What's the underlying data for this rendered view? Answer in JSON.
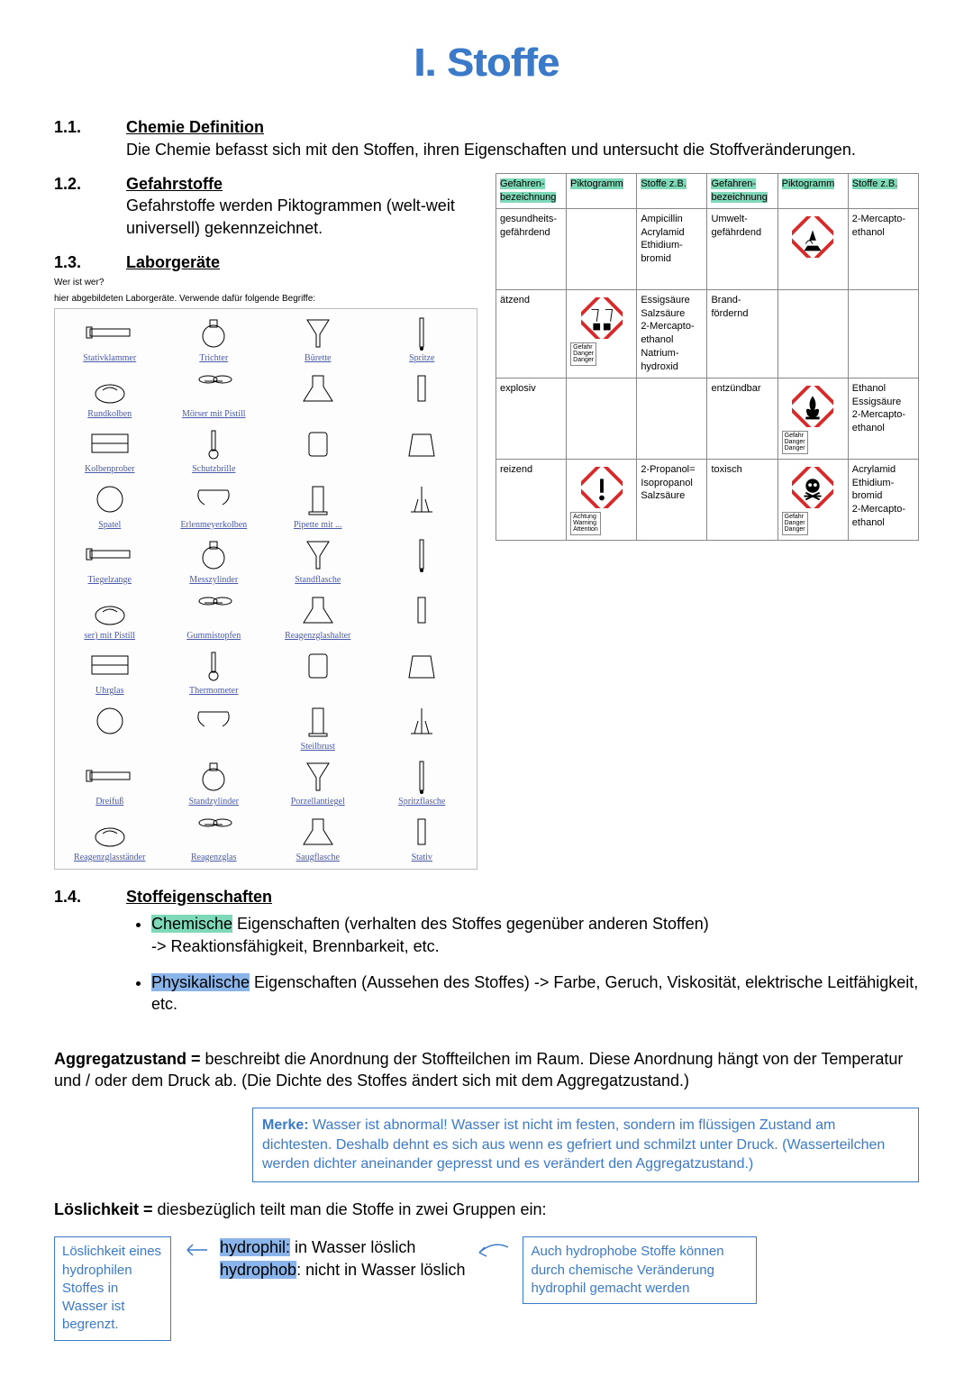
{
  "title": "I. Stoffe",
  "colors": {
    "title_color": "#3b7ac9",
    "highlight_green": "#7dd9b8",
    "highlight_blue": "#8bb5ea",
    "note_border": "#3b7ac9",
    "note_text": "#3b7ac9",
    "picto_red": "#d82a2a",
    "picto_white": "#ffffff"
  },
  "sections": {
    "s11": {
      "num": "1.1.",
      "title": "Chemie Definition",
      "body": "Die Chemie befasst sich mit den Stoffen, ihren Eigenschaften und untersucht die Stoffveränderungen."
    },
    "s12": {
      "num": "1.2.",
      "title": "Gefahrstoffe",
      "body": "Gefahrstoffe werden Piktogrammen (welt-weit universell) gekennzeichnet."
    },
    "s13": {
      "num": "1.3.",
      "title": "Laborgeräte",
      "caption1": "Wer ist wer?",
      "caption2": "hier abgebildeten Laborgeräte. Verwende dafür folgende Begriffe:"
    },
    "s14": {
      "num": "1.4.",
      "title": "Stoffeigenschaften"
    }
  },
  "hazard_table": {
    "headers": [
      "Gefahren-bezeichnung",
      "Piktogramm",
      "Stoffe z.B.",
      "Gefahren-bezeichnung",
      "Piktogramm",
      "Stoffe z.B."
    ],
    "rows": [
      {
        "left_name": "gesundheits-gefährdend",
        "left_picto": "",
        "left_stoffe": "Ampicillin\nAcrylamid\nEthidium-bromid",
        "right_name": "Umwelt-gefährdend",
        "right_picto": "environment",
        "right_picto_label": "",
        "right_stoffe": "2-Mercapto-ethanol"
      },
      {
        "left_name": "ätzend",
        "left_picto": "corrosive",
        "left_picto_label": "Gefahr\nDanger\nDanger",
        "left_stoffe": "Essigsäure\nSalzsäure\n2-Mercapto-ethanol\nNatrium-hydroxid",
        "right_name": "Brand-fördernd",
        "right_picto": "",
        "right_stoffe": ""
      },
      {
        "left_name": "explosiv",
        "left_picto": "",
        "left_stoffe": "",
        "right_name": "entzündbar",
        "right_picto": "flame",
        "right_picto_label": "Gefahr\nDanger\nDanger",
        "right_stoffe": "Ethanol\nEssigsäure\n2-Mercapto-ethanol"
      },
      {
        "left_name": "reizend",
        "left_picto": "exclaim",
        "left_picto_label": "Achtung\nWarning\nAttention",
        "left_stoffe": "2-Propanol= Isopropanol\nSalzsäure",
        "right_name": "toxisch",
        "right_picto": "skull",
        "right_picto_label": "Gefahr\nDanger\nDanger",
        "right_stoffe": "Acrylamid\nEthidium-bromid\n2-Mercapto-ethanol"
      }
    ]
  },
  "labgear": [
    "Stativklammer",
    "Trichter",
    "Bürette",
    "Spritze",
    "Rundkolben",
    "Mörser mit Pistill",
    "",
    "",
    "Kolbenprober",
    "Schutzbrille",
    "",
    "",
    "Spatel",
    "Erlenmeyerkolben",
    "Pipette mit ...",
    "",
    "Tiegelzange",
    "Messzylinder",
    "Standflasche",
    "",
    "ser) mit Pistill",
    "Gummistopfen",
    "Reagenzglashalter",
    "",
    "Uhrglas",
    "Thermometer",
    "",
    "",
    "",
    "",
    "Steilbrust",
    "",
    "Dreifuß",
    "Standzylinder",
    "Porzellantiegel",
    "Spritzflasche",
    "Reagenzglasständer",
    "Reagenzglas",
    "Saugflasche",
    "Stativ"
  ],
  "properties": {
    "bullet1_hl": "Chemische",
    "bullet1_rest": " Eigenschaften (verhalten des Stoffes gegenüber anderen Stoffen)",
    "bullet1_line2": "-> Reaktionsfähigkeit, Brennbarkeit, etc.",
    "bullet2_hl": "Physikalische",
    "bullet2_rest": " Eigenschaften (Aussehen des Stoffes) -> Farbe, Geruch, Viskosität, elektrische Leitfähigkeit, etc."
  },
  "aggregat": {
    "label": "Aggregatzustand =",
    "text": " beschreibt die Anordnung der Stoffteilchen im Raum. Diese Anordnung hängt von der Temperatur und / oder dem Druck ab. (Die Dichte des Stoffes ändert sich mit dem Aggregatzustand.)"
  },
  "merke": {
    "label": "Merke:",
    "text": " Wasser ist abnormal! Wasser ist nicht im festen, sondern im flüssigen Zustand am dichtesten. Deshalb dehnt es sich aus wenn es gefriert und schmilzt unter Druck. (Wasserteilchen werden dichter aneinander gepresst und es verändert den Aggregatzustand.)"
  },
  "loeslichkeit": {
    "label": "Löslichkeit =",
    "text": " diesbezüglich teilt man die Stoffe in zwei Gruppen ein:"
  },
  "box_left": "Löslichkeit eines hydrophilen Stoffes in Wasser ist begrenzt.",
  "hydro": {
    "hl1": "hydrophil:",
    "rest1": " in Wasser löslich",
    "hl2": "hydrophob",
    "rest2": ": nicht in Wasser löslich"
  },
  "box_right": "Auch hydrophobe Stoffe können durch chemische Veränderung hydrophil gemacht werden"
}
